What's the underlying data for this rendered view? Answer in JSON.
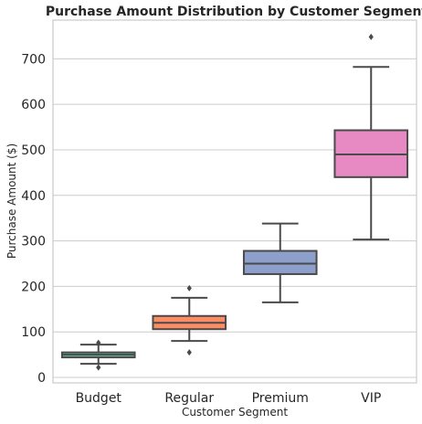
{
  "chart_data": {
    "type": "box",
    "title": "Purchase Amount Distribution by Customer Segment",
    "xlabel": "Customer Segment",
    "ylabel": "Purchase Amount ($)",
    "ylim": [
      -12,
      785
    ],
    "yticks": [
      0,
      100,
      200,
      300,
      400,
      500,
      600,
      700
    ],
    "grid": "horizontal",
    "categories": [
      "Budget",
      "Regular",
      "Premium",
      "VIP"
    ],
    "boxes": [
      {
        "name": "Budget",
        "whisker_low": 30,
        "q1": 44,
        "median": 50,
        "q3": 55,
        "whisker_high": 72,
        "outliers": [
          22,
          76
        ],
        "color": "#66c2a5"
      },
      {
        "name": "Regular",
        "whisker_low": 80,
        "q1": 106,
        "median": 120,
        "q3": 135,
        "whisker_high": 175,
        "outliers": [
          55,
          196
        ],
        "color": "#fc8d62"
      },
      {
        "name": "Premium",
        "whisker_low": 165,
        "q1": 227,
        "median": 250,
        "q3": 278,
        "whisker_high": 338,
        "outliers": [],
        "color": "#8da0cb"
      },
      {
        "name": "VIP",
        "whisker_low": 303,
        "q1": 440,
        "median": 490,
        "q3": 543,
        "whisker_high": 682,
        "outliers": [
          748
        ],
        "color": "#e78ac3"
      }
    ]
  }
}
